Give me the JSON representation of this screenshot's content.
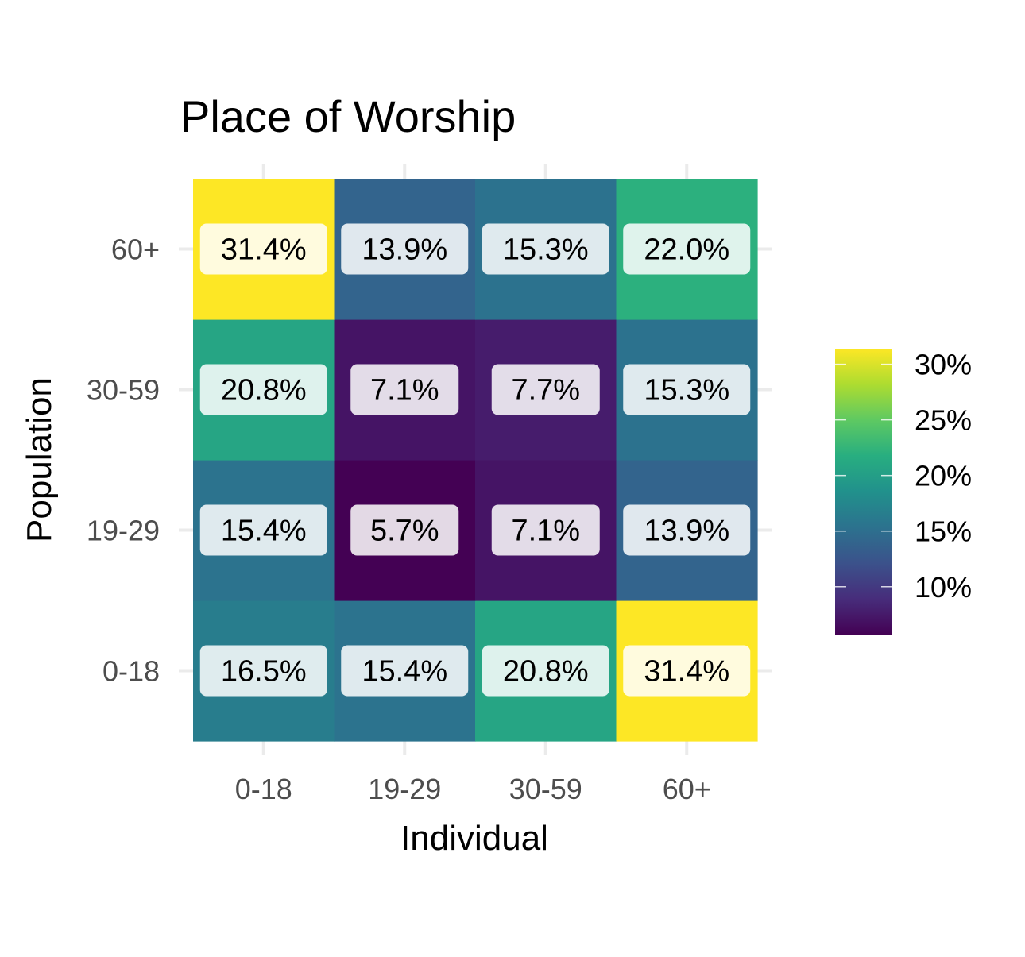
{
  "chart_data": {
    "type": "heatmap",
    "title": "Place of Worship",
    "xlabel": "Individual",
    "ylabel": "Population",
    "x_categories": [
      "0-18",
      "19-29",
      "30-59",
      "60+"
    ],
    "y_categories": [
      "0-18",
      "19-29",
      "30-59",
      "60+"
    ],
    "values": [
      [
        16.5,
        15.4,
        20.8,
        31.4
      ],
      [
        15.4,
        5.7,
        7.1,
        13.9
      ],
      [
        20.8,
        7.1,
        7.7,
        15.3
      ],
      [
        31.4,
        13.9,
        15.3,
        22.0
      ]
    ],
    "labels": [
      [
        "16.5%",
        "15.4%",
        "20.8%",
        "31.4%"
      ],
      [
        "15.4%",
        "5.7%",
        "7.1%",
        "13.9%"
      ],
      [
        "20.8%",
        "7.1%",
        "7.7%",
        "15.3%"
      ],
      [
        "31.4%",
        "13.9%",
        "15.3%",
        "22.0%"
      ]
    ],
    "colorscale": "viridis",
    "color_range": [
      5.7,
      31.4
    ],
    "legend": {
      "position": "right",
      "ticks": [
        10,
        15,
        20,
        25,
        30
      ],
      "tick_labels": [
        "10%",
        "15%",
        "20%",
        "25%",
        "30%"
      ]
    },
    "grid": true
  }
}
